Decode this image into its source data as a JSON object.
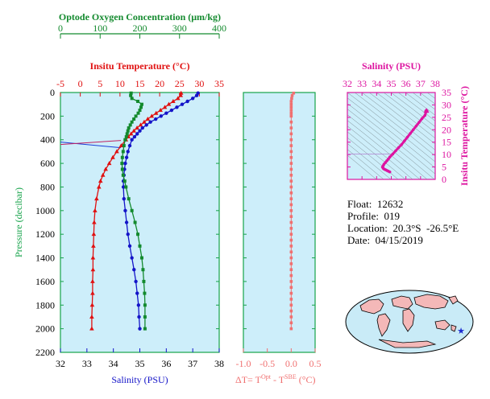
{
  "colors": {
    "oxygen": "#138a2e",
    "temperature": "#e01010",
    "salinity": "#1414c8",
    "delta_t": "#f07070",
    "ts_magenta": "#dd14a0",
    "panel_bg": "#cdeefa",
    "grid_green": "#16a34a"
  },
  "info": {
    "float": "Float:  12632",
    "profile": "Profile:  019",
    "location": "Location:  20.3°S  -26.5°E",
    "date": "Date:  04/15/2019"
  },
  "chart_data": [
    {
      "type": "line",
      "panel": "profile",
      "ylabel": "Pressure (decibar)",
      "ylim": [
        2200,
        0
      ],
      "yticks": [
        "0",
        "200",
        "400",
        "600",
        "800",
        "1000",
        "1200",
        "1400",
        "1600",
        "1800",
        "2000",
        "2200"
      ],
      "axes": {
        "oxygen": {
          "title": "Optode Oxygen Concentration (μm/kg)",
          "range": [
            0,
            400
          ],
          "ticks": [
            "0",
            "100",
            "200",
            "300",
            "400"
          ]
        },
        "temperature": {
          "title": "Insitu Temperature (°C)",
          "range": [
            -5,
            35
          ],
          "ticks": [
            "-5",
            "0",
            "5",
            "10",
            "15",
            "20",
            "25",
            "30",
            "35"
          ]
        },
        "salinity": {
          "title": "Salinity (PSU)",
          "range": [
            32,
            38
          ],
          "ticks": [
            "32",
            "33",
            "34",
            "35",
            "36",
            "37",
            "38"
          ]
        }
      },
      "series": [
        {
          "key": "temperature",
          "pressure": [
            5,
            25,
            50,
            75,
            100,
            125,
            150,
            175,
            200,
            225,
            250,
            275,
            300,
            325,
            350,
            375,
            400,
            450,
            500,
            550,
            600,
            650,
            700,
            750,
            800,
            900,
            1000,
            1100,
            1200,
            1300,
            1400,
            1500,
            1600,
            1700,
            1800,
            1900,
            2000
          ],
          "values": [
            25.4,
            25.3,
            24.6,
            23.4,
            22.3,
            21.3,
            20.2,
            19.1,
            18.0,
            17.0,
            16.1,
            15.2,
            14.3,
            13.5,
            12.8,
            12.1,
            11.5,
            10.3,
            9.2,
            8.2,
            7.3,
            6.4,
            5.7,
            5.1,
            4.7,
            4.1,
            3.7,
            3.5,
            3.4,
            3.3,
            3.2,
            3.2,
            3.1,
            3.1,
            3.0,
            2.9,
            2.9
          ]
        },
        {
          "key": "salinity",
          "pressure": [
            5,
            25,
            50,
            75,
            100,
            125,
            150,
            175,
            200,
            225,
            250,
            275,
            300,
            325,
            350,
            375,
            400,
            450,
            500,
            550,
            600,
            650,
            700,
            750,
            800,
            900,
            1000,
            1100,
            1200,
            1300,
            1400,
            1500,
            1600,
            1700,
            1800,
            1900,
            2000
          ],
          "values": [
            37.2,
            37.15,
            37.0,
            36.8,
            36.6,
            36.4,
            36.2,
            36.0,
            35.8,
            35.6,
            35.4,
            35.25,
            35.1,
            35.0,
            34.9,
            34.8,
            34.7,
            34.62,
            34.55,
            34.5,
            34.45,
            34.42,
            34.4,
            34.38,
            34.38,
            34.4,
            34.45,
            34.5,
            34.55,
            34.62,
            34.7,
            34.78,
            34.85,
            34.9,
            34.95,
            34.97,
            35.0
          ]
        },
        {
          "key": "oxygen",
          "pressure": [
            5,
            25,
            50,
            75,
            100,
            125,
            150,
            175,
            200,
            225,
            250,
            275,
            300,
            325,
            350,
            375,
            400,
            450,
            500,
            550,
            600,
            650,
            700,
            750,
            800,
            900,
            1000,
            1100,
            1200,
            1300,
            1400,
            1500,
            1600,
            1700,
            1800,
            1900,
            2000
          ],
          "values": [
            178,
            177,
            180,
            195,
            205,
            203,
            200,
            196,
            190,
            185,
            180,
            176,
            172,
            170,
            168,
            166,
            163,
            160,
            158,
            156,
            155,
            156,
            158,
            162,
            165,
            172,
            180,
            188,
            195,
            200,
            205,
            208,
            210,
            212,
            213,
            213,
            213
          ]
        }
      ]
    },
    {
      "type": "scatter",
      "panel": "delta_t",
      "xlabel": "ΔT= T",
      "xlabel_sup1": "Opt",
      "xlabel_mid": " - T",
      "xlabel_sup2": "SBE",
      "xlabel_unit": " (°C)",
      "xlim": [
        -1.0,
        0.5
      ],
      "xticks": [
        "-1.0",
        "-0.5",
        "0.0",
        "0.5"
      ],
      "pressure": [
        5,
        25,
        50,
        75,
        100,
        125,
        150,
        175,
        200,
        250,
        300,
        350,
        400,
        450,
        500,
        550,
        600,
        650,
        700,
        750,
        800,
        850,
        900,
        950,
        1000,
        1050,
        1100,
        1150,
        1200,
        1250,
        1300,
        1350,
        1400,
        1450,
        1500,
        1550,
        1600,
        1650,
        1700,
        1750,
        1800,
        1850,
        1900,
        1950,
        2000
      ],
      "values": [
        0.05,
        0.02,
        0.01,
        0.0,
        0.0,
        0.0,
        0.0,
        0.0,
        0.0,
        0.0,
        0.0,
        0.0,
        0.0,
        0.0,
        0.0,
        0.0,
        0.0,
        0.0,
        0.0,
        0.0,
        0.0,
        0.0,
        0.0,
        0.0,
        0.0,
        0.0,
        0.0,
        0.0,
        0.0,
        0.0,
        0.0,
        0.0,
        0.0,
        0.0,
        0.0,
        0.0,
        0.0,
        0.0,
        0.0,
        0.0,
        0.0,
        0.0,
        0.0,
        0.0,
        0.0
      ]
    },
    {
      "type": "scatter",
      "panel": "ts_diagram",
      "xlabel": "Salinity (PSU)",
      "ylabel": "Insitu Temperature (°C)",
      "xlim": [
        32,
        38
      ],
      "ylim": [
        0,
        35
      ],
      "xticks": [
        "32",
        "33",
        "34",
        "35",
        "36",
        "37",
        "38"
      ],
      "yticks": [
        "0",
        "5",
        "10",
        "15",
        "20",
        "25",
        "30",
        "35"
      ],
      "x": [
        37.4,
        37.3,
        37.1,
        36.9,
        36.7,
        36.5,
        36.3,
        36.1,
        35.9,
        35.7,
        35.5,
        35.3,
        35.1,
        34.9,
        34.8,
        34.7,
        34.6,
        34.5,
        34.45,
        34.4,
        34.45,
        34.5,
        34.6,
        34.7,
        34.8,
        34.9
      ],
      "y": [
        27.5,
        25.8,
        24.5,
        23.0,
        21.5,
        20.0,
        18.5,
        17.0,
        15.5,
        14.0,
        12.8,
        11.5,
        10.2,
        9.0,
        8.2,
        7.5,
        6.8,
        6.1,
        5.5,
        5.0,
        4.5,
        4.2,
        3.9,
        3.6,
        3.3,
        3.0
      ]
    }
  ]
}
